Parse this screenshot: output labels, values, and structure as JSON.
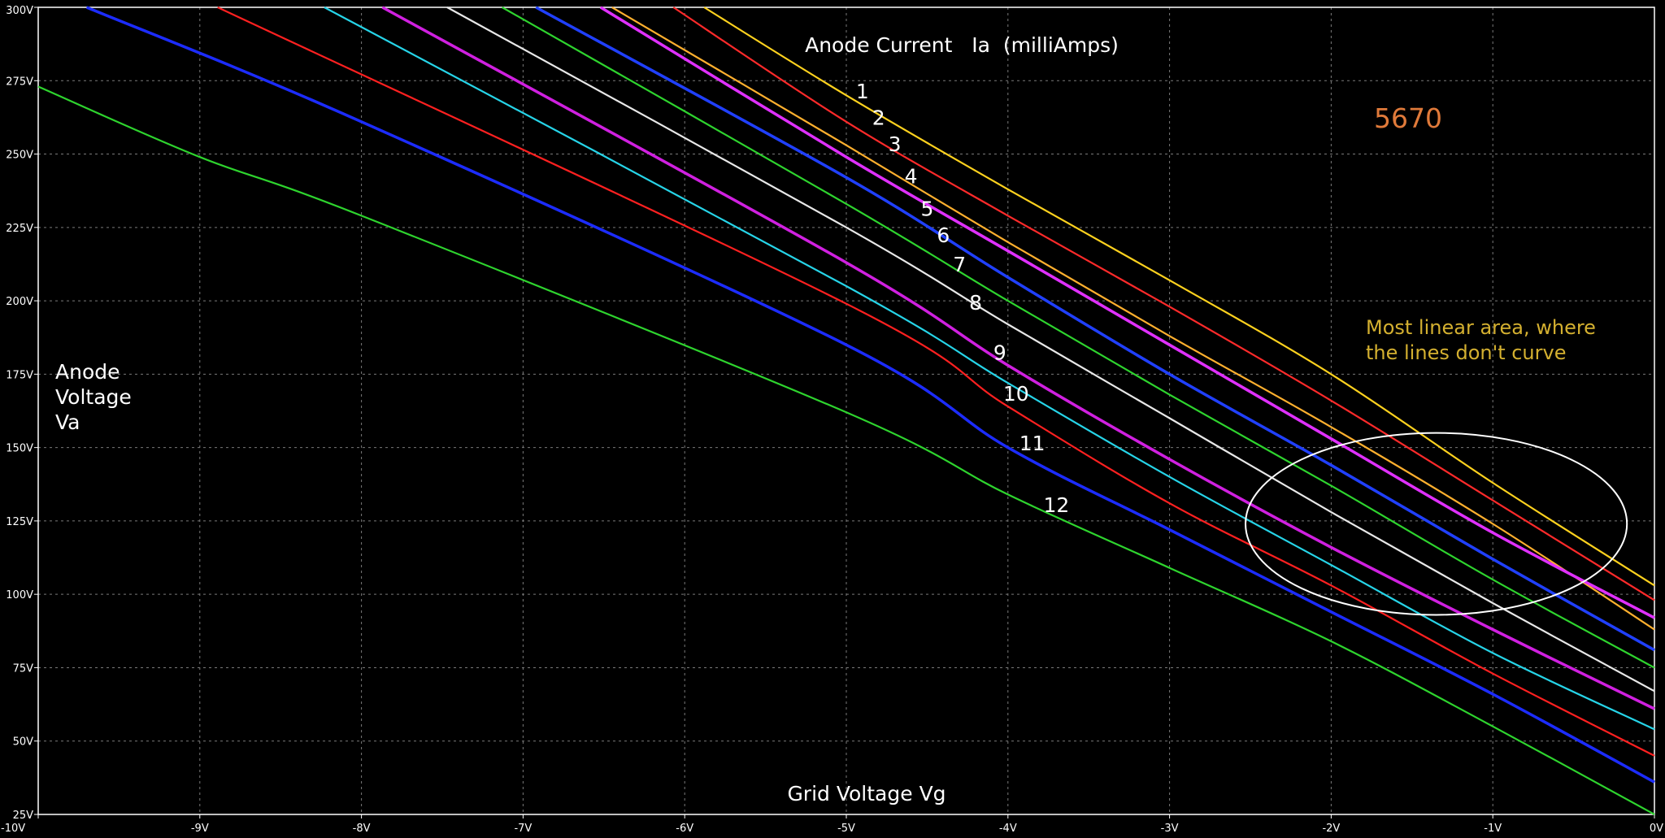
{
  "chart_data": {
    "type": "line",
    "title": "Anode Current   Ia  (milliAmps)",
    "xlabel": "Grid Voltage Vg",
    "ylabel_lines": [
      "Anode",
      "Voltage",
      "Va"
    ],
    "xlim": [
      -10,
      0
    ],
    "ylim": [
      25,
      300
    ],
    "grid": true,
    "x_ticks": [
      {
        "v": -10,
        "label": "-10V"
      },
      {
        "v": -9,
        "label": "-9V"
      },
      {
        "v": -8,
        "label": "-8V"
      },
      {
        "v": -7,
        "label": "-7V"
      },
      {
        "v": -6,
        "label": "-6V"
      },
      {
        "v": -5,
        "label": "-5V"
      },
      {
        "v": -4,
        "label": "-4V"
      },
      {
        "v": -3,
        "label": "-3V"
      },
      {
        "v": -2,
        "label": "-2V"
      },
      {
        "v": -1,
        "label": "-1V"
      },
      {
        "v": 0,
        "label": "0V"
      }
    ],
    "y_ticks": [
      {
        "v": 25,
        "label": "25V"
      },
      {
        "v": 50,
        "label": "50V"
      },
      {
        "v": 75,
        "label": "75V"
      },
      {
        "v": 100,
        "label": "100V"
      },
      {
        "v": 125,
        "label": "125V"
      },
      {
        "v": 150,
        "label": "150V"
      },
      {
        "v": 175,
        "label": "175V"
      },
      {
        "v": 200,
        "label": "200V"
      },
      {
        "v": 225,
        "label": "225V"
      },
      {
        "v": 250,
        "label": "250V"
      },
      {
        "v": 275,
        "label": "275V"
      },
      {
        "v": 300,
        "label": "300V"
      }
    ],
    "series": [
      {
        "label": "1",
        "color": "#ffd21e",
        "x": [
          -5.88,
          -5.0,
          -4.0,
          -3.0,
          -2.0,
          -1.0,
          0.0
        ],
        "y": [
          300,
          270,
          238,
          207,
          175,
          138,
          103
        ],
        "label_at": [
          -4.9,
          269
        ]
      },
      {
        "label": "2",
        "color": "#ff2a2a",
        "x": [
          -6.07,
          -5.0,
          -4.0,
          -3.0,
          -2.0,
          -1.0,
          0.0
        ],
        "y": [
          300,
          261,
          229,
          198,
          166,
          132,
          98
        ],
        "label_at": [
          -4.8,
          260
        ]
      },
      {
        "label": "3",
        "color": "#ffb02e",
        "x": [
          -6.45,
          -5.0,
          -4.0,
          -3.0,
          -2.0,
          -1.0,
          0.0
        ],
        "y": [
          300,
          253,
          220,
          188,
          157,
          124,
          88
        ],
        "label_at": [
          -4.7,
          251
        ]
      },
      {
        "label": "4",
        "color": "#e030ff",
        "x": [
          -6.52,
          -5.0,
          -4.0,
          -3.0,
          -2.0,
          -1.0,
          0.0
        ],
        "y": [
          300,
          249,
          217,
          185,
          153,
          121,
          92
        ],
        "label_at": [
          -4.6,
          240
        ]
      },
      {
        "label": "5",
        "color": "#2040ff",
        "x": [
          -6.92,
          -5.0,
          -4.0,
          -3.0,
          -2.0,
          -1.0,
          0.0
        ],
        "y": [
          300,
          242,
          208,
          175,
          144,
          112,
          81
        ],
        "label_at": [
          -4.5,
          229
        ]
      },
      {
        "label": "6",
        "color": "#2ed42e",
        "x": [
          -7.13,
          -5.0,
          -4.0,
          -3.0,
          -2.0,
          -1.0,
          0.0
        ],
        "y": [
          300,
          233,
          200,
          168,
          137,
          105,
          75
        ],
        "label_at": [
          -4.4,
          220
        ]
      },
      {
        "label": "7",
        "color": "#e8e8e8",
        "x": [
          -7.47,
          -5.0,
          -4.0,
          -3.0,
          -2.0,
          -1.0,
          0.0
        ],
        "y": [
          300,
          225,
          192,
          160,
          128,
          97,
          67
        ],
        "label_at": [
          -4.3,
          210
        ]
      },
      {
        "label": "8",
        "color": "#d020e0",
        "x": [
          -7.87,
          -5.0,
          -4.0,
          -3.0,
          -2.0,
          -1.0,
          0.0
        ],
        "y": [
          300,
          213,
          178,
          146,
          116,
          88,
          61
        ],
        "label_at": [
          -4.2,
          197
        ]
      },
      {
        "label": "9",
        "color": "#26d4e8",
        "x": [
          -8.23,
          -5.0,
          -4.0,
          -3.0,
          -2.0,
          -1.0,
          0.0
        ],
        "y": [
          300,
          205,
          172,
          140,
          110,
          80,
          54
        ],
        "label_at": [
          -4.05,
          180
        ]
      },
      {
        "label": "10",
        "color": "#ff2020",
        "x": [
          -8.89,
          -5.0,
          -4.0,
          -3.0,
          -2.0,
          -1.0,
          0.0
        ],
        "y": [
          300,
          199,
          164,
          131,
          103,
          73,
          45
        ],
        "label_at": [
          -3.95,
          166
        ]
      },
      {
        "label": "11",
        "color": "#1c2cff",
        "x": [
          -9.7,
          -8.0,
          -5.0,
          -4.0,
          -3.0,
          -2.0,
          -1.0,
          0.0
        ],
        "y": [
          300,
          261,
          185,
          150,
          122,
          94,
          66,
          36
        ],
        "label_at": [
          -3.85,
          149
        ]
      },
      {
        "label": "12",
        "color": "#2ed42e",
        "x": [
          -10.0,
          -9.0,
          -8.0,
          -5.0,
          -4.0,
          -3.0,
          -2.0,
          -1.0,
          0.0
        ],
        "y": [
          273,
          249,
          229,
          162,
          134,
          109,
          84,
          55,
          25
        ],
        "label_at": [
          -3.7,
          128
        ]
      }
    ],
    "annotations": {
      "tube": {
        "text": "5670",
        "color": "#e07a3a"
      },
      "note": {
        "lines": [
          "Most linear area, where",
          "the lines don't curve"
        ],
        "color": "#d4b030"
      },
      "ellipse": {
        "cx": -1.35,
        "cy": 124,
        "rx": 1.18,
        "ry": 31,
        "color": "#ffffff"
      }
    }
  }
}
